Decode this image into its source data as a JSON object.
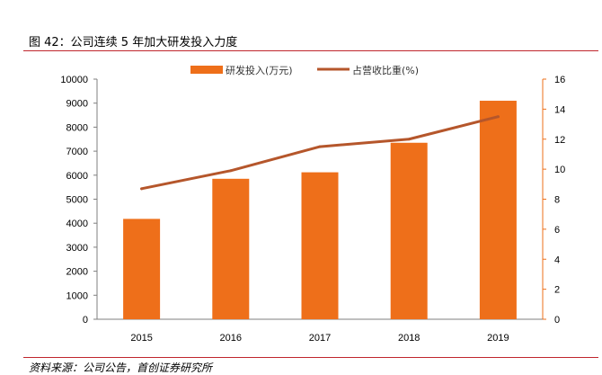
{
  "figure": {
    "title": "图 42：公司连续 5 年加大研发投入力度",
    "source": "资料来源：公司公告，首创证券研究所"
  },
  "chart_data": {
    "type": "bar",
    "categories": [
      "2015",
      "2016",
      "2017",
      "2018",
      "2019"
    ],
    "series": [
      {
        "name": "研发投入(万元)",
        "type": "bar",
        "axis": "left",
        "values": [
          4180,
          5850,
          6120,
          7350,
          9100
        ],
        "color": "#ee6f1a"
      },
      {
        "name": "占营收比重(%)",
        "type": "line",
        "axis": "right",
        "values": [
          8.7,
          9.9,
          11.5,
          12.0,
          13.5
        ],
        "color": "#b5562b"
      }
    ],
    "ylim": [
      0,
      10000
    ],
    "y2lim": [
      0,
      16
    ],
    "yticks": [
      "0",
      "1000",
      "2000",
      "3000",
      "4000",
      "5000",
      "6000",
      "7000",
      "8000",
      "9000",
      "10000"
    ],
    "y2ticks": [
      "0",
      "2",
      "4",
      "6",
      "8",
      "10",
      "12",
      "14",
      "16"
    ],
    "legend": "top-center",
    "grid": false
  }
}
